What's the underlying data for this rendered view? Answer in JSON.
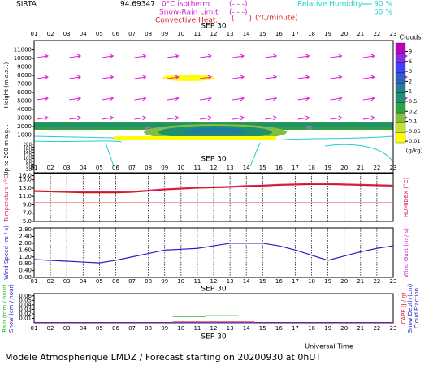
{
  "header": {
    "site": "SIRTA",
    "coord": "94.69347",
    "items": [
      {
        "label": "0°C isotherm",
        "key": "(- - -)"
      },
      {
        "label": "Snow-Rain Limit",
        "key": "(- - -)"
      },
      {
        "label": "Convective Heat.",
        "key": "(——)",
        "unit": "(°C/minute)"
      }
    ],
    "rh": {
      "label": "Relative Humidity",
      "levels": [
        "90 %",
        "60 %"
      ]
    }
  },
  "date_label": "SEP 30",
  "hours": [
    "01",
    "02",
    "03",
    "04",
    "05",
    "06",
    "07",
    "08",
    "09",
    "10",
    "11",
    "12",
    "13",
    "14",
    "15",
    "16",
    "17",
    "18",
    "19",
    "20",
    "21",
    "22",
    "23"
  ],
  "x_title": "Universal Time",
  "footer": "Modele Atmospherique LMDZ / Forecast starting on 20200930 at 0hUT",
  "chart_data": [
    {
      "type": "contour",
      "y_label": "Height (m a.s.l.)",
      "ylim": [
        0,
        12100
      ],
      "yticks": [
        1000,
        2000,
        3000,
        4000,
        5000,
        6000,
        7000,
        8000,
        9000,
        10000,
        11000
      ],
      "low_label": "Up to 200 m a.g.l.",
      "low_ylim": [
        0,
        210
      ],
      "low_yticks": [
        20,
        40,
        60,
        80,
        100,
        120,
        140,
        160,
        180,
        200
      ],
      "contour_labels": [
        60,
        60
      ],
      "colorbar": {
        "title": "Clouds",
        "unit": "(g/kg)",
        "ticks": [
          9,
          6,
          3,
          2,
          1,
          0.5,
          0.2,
          0.1,
          0.05,
          0.01
        ],
        "colors": [
          "#c000c0",
          "#8a2be2",
          "#4040ff",
          "#2f5fc0",
          "#20809a",
          "#209070",
          "#30a040",
          "#80c040",
          "#c8e030",
          "#ffff00"
        ]
      }
    },
    {
      "type": "line",
      "y_label": "Temperature (°C)",
      "y2_label": "HUMIDEX (°C)",
      "ylim": [
        5,
        16.5
      ],
      "yticks": [
        {
          "value": 5,
          "label": "5.0"
        },
        {
          "value": 7,
          "label": "7.0"
        },
        {
          "value": 9,
          "label": "9.0"
        },
        {
          "value": 11,
          "label": "11.0"
        },
        {
          "value": 13,
          "label": "13.0"
        },
        {
          "value": 15,
          "label": "15.0"
        },
        {
          "value": 16,
          "label": "16.0"
        }
      ],
      "series": [
        {
          "color": "#e0206a",
          "values": [
            12.4,
            12.3,
            12.2,
            12.1,
            12.1,
            12.1,
            12.2,
            12.5,
            12.8,
            13.0,
            13.2,
            13.3,
            13.4,
            13.6,
            13.7,
            13.9,
            14.0,
            14.1,
            14.1,
            14.0,
            13.9,
            13.8,
            13.7
          ]
        },
        {
          "color": "#d01818",
          "values": [
            12.2,
            12.1,
            12.0,
            11.9,
            11.9,
            11.9,
            12.0,
            12.3,
            12.6,
            12.8,
            13.0,
            13.1,
            13.2,
            13.4,
            13.5,
            13.7,
            13.8,
            13.9,
            13.9,
            13.8,
            13.7,
            13.6,
            13.5
          ]
        },
        {
          "color": "#f08080",
          "values": [
            9.6,
            9.6,
            9.6,
            9.6,
            9.6,
            9.6,
            9.6,
            9.6,
            9.6,
            9.6,
            9.6,
            9.6,
            9.6,
            9.6,
            9.6,
            9.6,
            9.6,
            9.6,
            9.6,
            9.6,
            9.6,
            9.6,
            9.6
          ]
        }
      ]
    },
    {
      "type": "line",
      "y_label": "Wind Speed (m / s)",
      "y2_label": "Wind Gust (m / s)",
      "ylim": [
        0,
        2.9
      ],
      "yticks": [
        {
          "value": 0,
          "label": "0.00"
        },
        {
          "value": 0.4,
          "label": "0.40"
        },
        {
          "value": 0.8,
          "label": "0.80"
        },
        {
          "value": 1.2,
          "label": "1.20"
        },
        {
          "value": 1.6,
          "label": "1.60"
        },
        {
          "value": 2,
          "label": "2.00"
        },
        {
          "value": 2.4,
          "label": "2.40"
        },
        {
          "value": 2.8,
          "label": "2.80"
        }
      ],
      "series": [
        {
          "color": "#2020c8",
          "values": [
            1.05,
            1.0,
            0.95,
            0.9,
            0.85,
            1.0,
            1.2,
            1.4,
            1.6,
            1.65,
            1.7,
            1.85,
            2.0,
            2.0,
            2.0,
            1.85,
            1.6,
            1.3,
            1.0,
            1.25,
            1.5,
            1.7,
            1.85
          ]
        }
      ]
    },
    {
      "type": "step",
      "y_labels": [
        "Rain (mm / hour)",
        "Snow (cm / hour)"
      ],
      "y2_labels": [
        "CAPE (J / g)",
        "Snow Depth (cm)",
        "Cloud Fraction"
      ],
      "ylim": [
        0,
        0.065
      ],
      "yticks": [
        0.01,
        0.02,
        0.03,
        0.04,
        0.05,
        0.06
      ],
      "series": [
        {
          "color": "#20c020",
          "values": [
            0,
            0,
            0,
            0,
            0,
            0,
            0,
            0,
            0,
            0.014,
            0.014,
            0.016,
            0.016,
            0,
            0,
            0,
            0,
            0,
            0,
            0,
            0,
            0,
            0
          ]
        },
        {
          "color": "#e02020",
          "values": [
            0.001,
            0.001,
            0.001,
            0.001,
            0.001,
            0.001,
            0.001,
            0.001,
            0.001,
            0.002,
            0.002,
            0.002,
            0.002,
            0.002,
            0.001,
            0.001,
            0.001,
            0.001,
            0.001,
            0.001,
            0.001,
            0.001,
            0.001
          ]
        },
        {
          "color": "#2020c8",
          "values": [
            0,
            0,
            0,
            0,
            0,
            0,
            0,
            0,
            0,
            0,
            0,
            0,
            0,
            0,
            0,
            0,
            0,
            0,
            0,
            0,
            0,
            0,
            0
          ]
        }
      ]
    }
  ]
}
